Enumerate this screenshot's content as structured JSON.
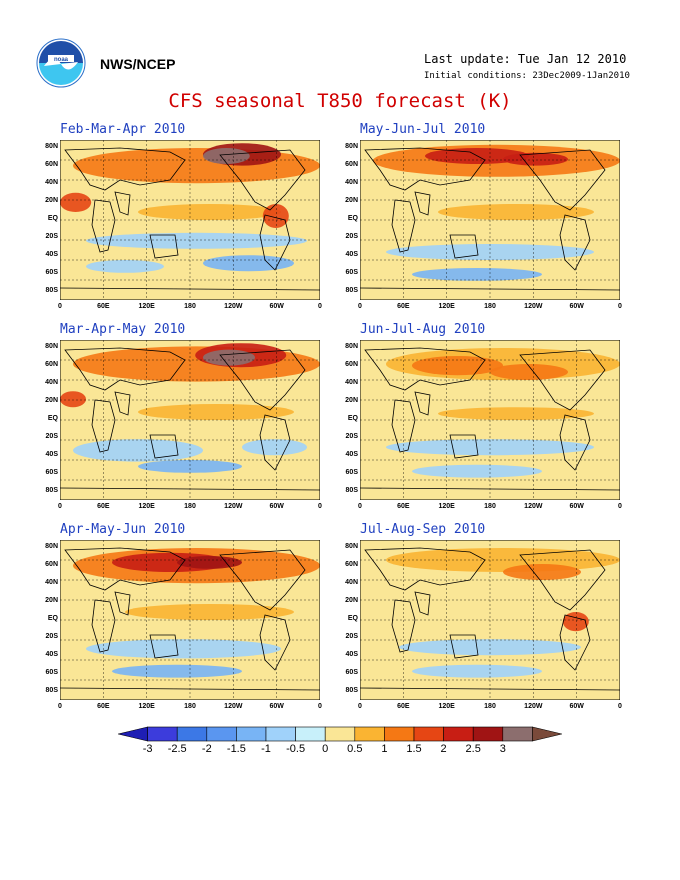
{
  "header": {
    "org": "NWS/NCEP",
    "last_update": "Last update: Tue Jan 12 2010",
    "initial_conditions": "Initial conditions: 23Dec2009-1Jan2010",
    "title": "CFS seasonal T850 forecast (K)"
  },
  "logo_icon": "noaa-logo",
  "colors": {
    "title": "#d00000",
    "panel_title": "#2040c0",
    "land_outline": "#000000"
  },
  "axes": {
    "lat_labels": [
      "80N",
      "60N",
      "40N",
      "20N",
      "EQ",
      "20S",
      "40S",
      "60S",
      "80S"
    ],
    "lon_labels": [
      "0",
      "60E",
      "120E",
      "180",
      "120W",
      "60W",
      "0"
    ]
  },
  "panels": [
    {
      "title": "Feb-Mar-Apr 2010"
    },
    {
      "title": "May-Jun-Jul 2010"
    },
    {
      "title": "Mar-Apr-May 2010"
    },
    {
      "title": "Jun-Jul-Aug 2010"
    },
    {
      "title": "Apr-May-Jun 2010"
    },
    {
      "title": "Jul-Aug-Sep 2010"
    }
  ],
  "colorbar": {
    "labels": [
      "-3",
      "-2.5",
      "-2",
      "-1.5",
      "-1",
      "-0.5",
      "0",
      "0.5",
      "1",
      "1.5",
      "2",
      "2.5",
      "3"
    ],
    "colors": [
      "#1e1eb4",
      "#3c3cdc",
      "#3c78e6",
      "#5a96f0",
      "#78b4f5",
      "#a0d2fa",
      "#c8f0fa",
      "#fae696",
      "#fab432",
      "#f57814",
      "#e64614",
      "#c81e14",
      "#a01414",
      "#8c6e6e",
      "#7a4a3a"
    ]
  }
}
